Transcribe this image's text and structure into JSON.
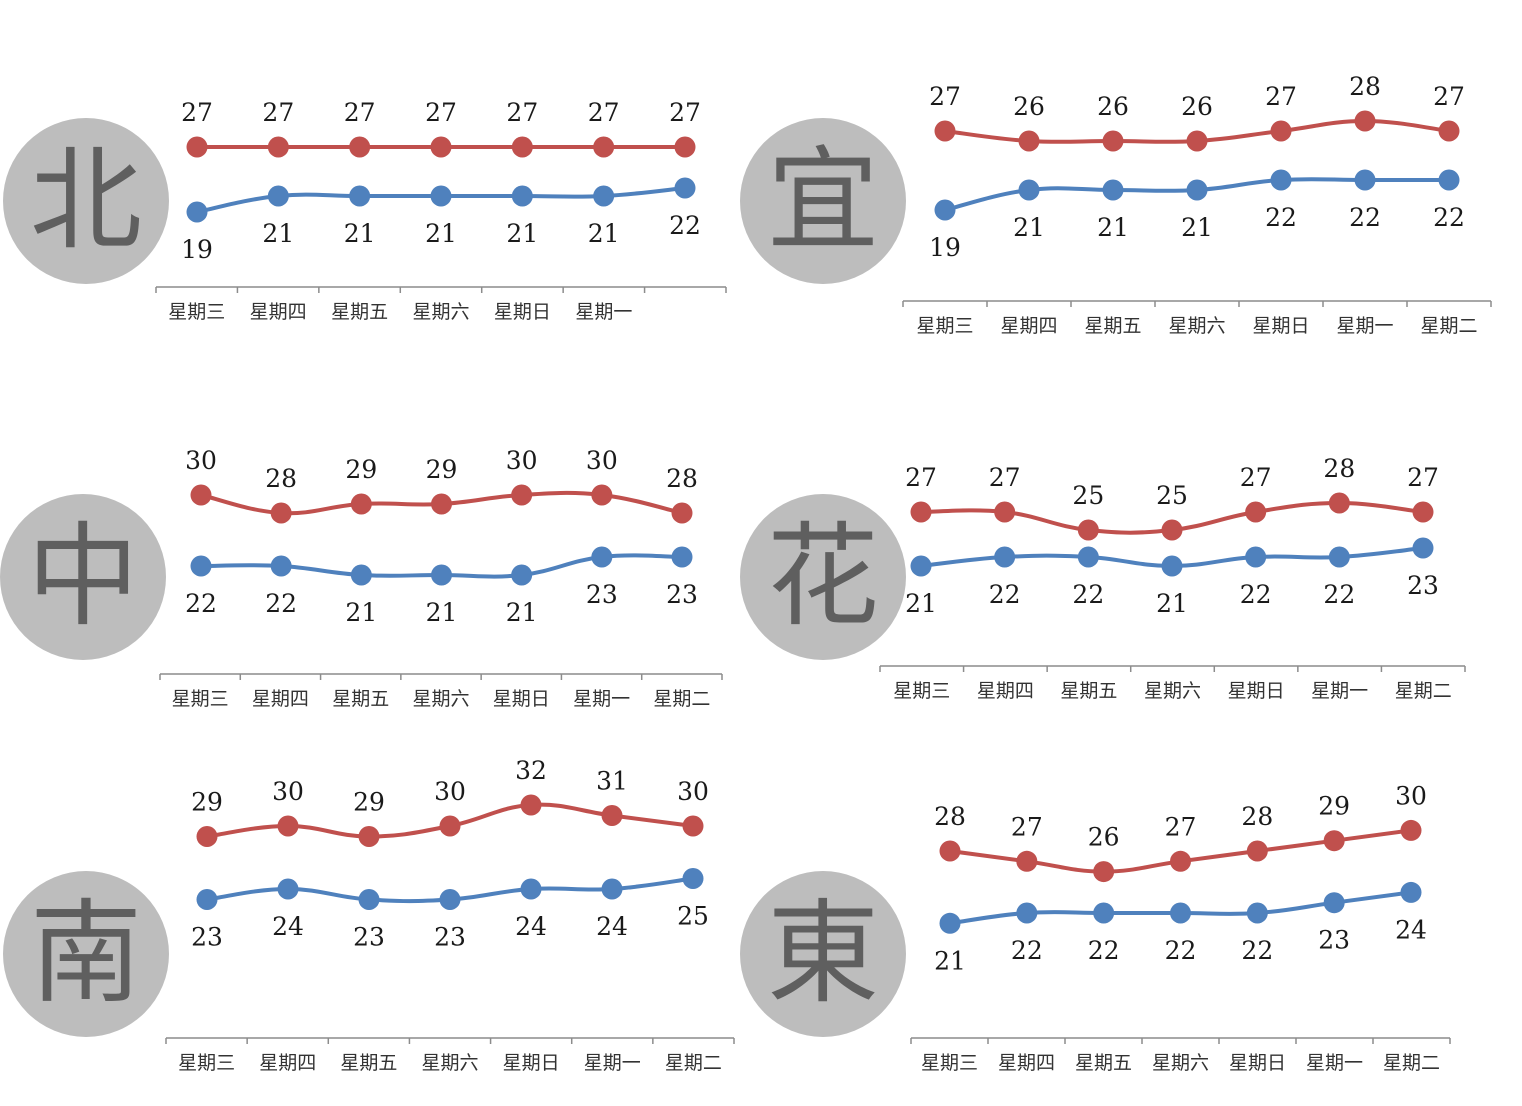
{
  "colors": {
    "high": "#c0504d",
    "low": "#4f81bd",
    "axis": "#8c8c8c",
    "label": "#1a1a1a"
  },
  "chart_data": [
    {
      "type": "line",
      "region": "北",
      "categories": [
        "星期三",
        "星期四",
        "星期五",
        "星期六",
        "星期日",
        "星期一",
        ""
      ],
      "series": [
        {
          "values": [
            27,
            27,
            27,
            27,
            27,
            27,
            27
          ]
        },
        {
          "values": [
            19,
            21,
            21,
            21,
            21,
            21,
            22
          ]
        }
      ]
    },
    {
      "type": "line",
      "region": "宜",
      "categories": [
        "星期三",
        "星期四",
        "星期五",
        "星期六",
        "星期日",
        "星期一",
        "星期二"
      ],
      "series": [
        {
          "values": [
            27,
            26,
            26,
            26,
            27,
            28,
            27
          ]
        },
        {
          "values": [
            19,
            21,
            21,
            21,
            22,
            22,
            22
          ]
        }
      ]
    },
    {
      "type": "line",
      "region": "中",
      "categories": [
        "星期三",
        "星期四",
        "星期五",
        "星期六",
        "星期日",
        "星期一",
        "星期二"
      ],
      "series": [
        {
          "values": [
            30,
            28,
            29,
            29,
            30,
            30,
            28
          ]
        },
        {
          "values": [
            22,
            22,
            21,
            21,
            21,
            23,
            23
          ]
        }
      ]
    },
    {
      "type": "line",
      "region": "花",
      "categories": [
        "星期三",
        "星期四",
        "星期五",
        "星期六",
        "星期日",
        "星期一",
        "星期二"
      ],
      "series": [
        {
          "values": [
            27,
            27,
            25,
            25,
            27,
            28,
            27
          ]
        },
        {
          "values": [
            21,
            22,
            22,
            21,
            22,
            22,
            23
          ]
        }
      ]
    },
    {
      "type": "line",
      "region": "南",
      "categories": [
        "星期三",
        "星期四",
        "星期五",
        "星期六",
        "星期日",
        "星期一",
        "星期二"
      ],
      "series": [
        {
          "values": [
            29,
            30,
            29,
            30,
            32,
            31,
            30
          ]
        },
        {
          "values": [
            23,
            24,
            23,
            23,
            24,
            24,
            25
          ]
        }
      ]
    },
    {
      "type": "line",
      "region": "東",
      "categories": [
        "星期三",
        "星期四",
        "星期五",
        "星期六",
        "星期日",
        "星期一",
        "星期二"
      ],
      "series": [
        {
          "values": [
            28,
            27,
            26,
            27,
            28,
            29,
            30
          ]
        },
        {
          "values": [
            21,
            22,
            22,
            22,
            22,
            23,
            24
          ]
        }
      ]
    }
  ]
}
